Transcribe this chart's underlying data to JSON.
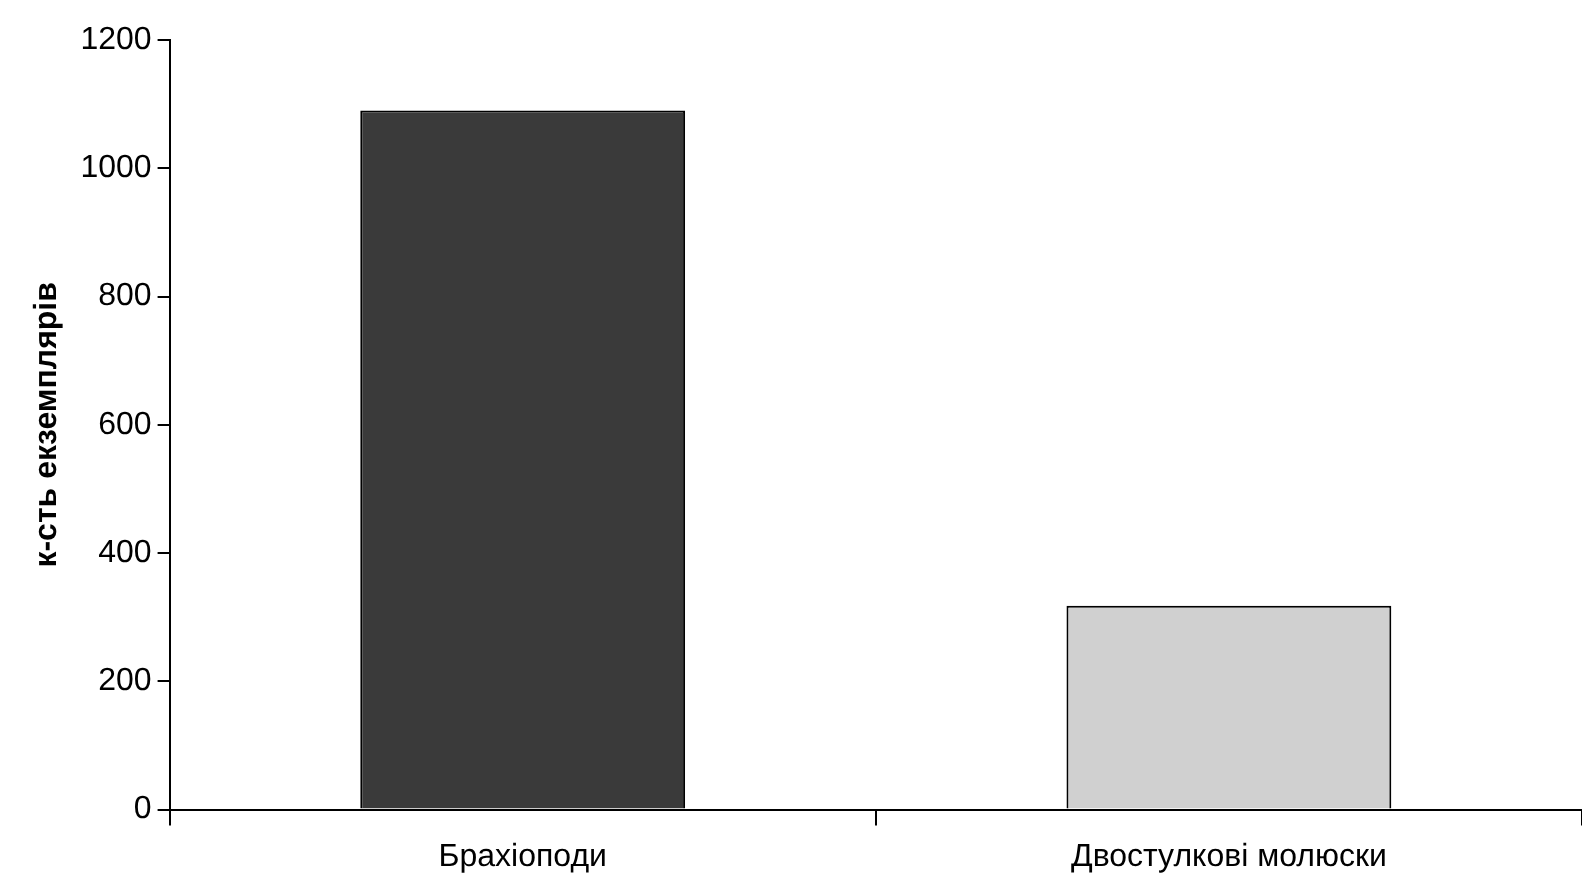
{
  "chart_data": {
    "type": "bar",
    "ylabel": "к-сть екземплярів",
    "categories": [
      "Брахіоподи",
      "Двостулкові молюски"
    ],
    "values": [
      1090,
      318
    ],
    "colors": [
      "#3a3a3a",
      "#d0d0d0"
    ],
    "ylim": [
      0,
      1200
    ],
    "yticks": [
      0,
      200,
      400,
      600,
      800,
      1000,
      1200
    ],
    "grid": false,
    "legend": false
  }
}
